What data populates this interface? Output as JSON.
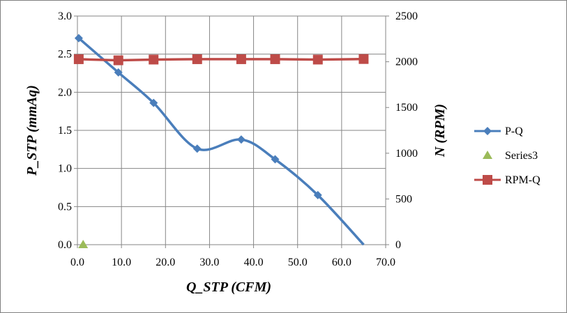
{
  "chart_data": {
    "type": "line",
    "xlabel": "Q_STP (CFM)",
    "ylabel": "P_STP (mmAq)",
    "y2label": "N (RPM)",
    "xlim": [
      0,
      70
    ],
    "ylim": [
      0,
      3
    ],
    "y2lim": [
      0,
      2500
    ],
    "x_ticks": [
      "0.0",
      "10.0",
      "20.0",
      "30.0",
      "40.0",
      "50.0",
      "60.0",
      "70.0"
    ],
    "y_ticks": [
      "0.0",
      "0.5",
      "1.0",
      "1.5",
      "2.0",
      "2.5",
      "3.0"
    ],
    "y2_ticks": [
      "0",
      "500",
      "1000",
      "1500",
      "2000",
      "2500"
    ],
    "grid": true,
    "legend_position": "right",
    "series": [
      {
        "name": "P-Q",
        "axis": "left",
        "marker": "diamond",
        "color": "#4a7ebb",
        "smooth": true,
        "x": [
          0.3,
          9.3,
          17.3,
          27.2,
          37.2,
          44.9,
          54.6,
          65.0
        ],
        "y": [
          2.71,
          2.26,
          1.86,
          1.26,
          1.38,
          1.12,
          0.65,
          0.0
        ],
        "show_last_marker": false
      },
      {
        "name": "Series3",
        "axis": "left",
        "marker": "triangle",
        "color": "#9bbb59",
        "x": [
          1.3
        ],
        "y": [
          0.0
        ]
      },
      {
        "name": "RPM-Q",
        "axis": "right",
        "marker": "square",
        "color": "#be4b48",
        "x": [
          0.3,
          9.3,
          17.3,
          27.2,
          37.2,
          44.9,
          54.6,
          65.0
        ],
        "y": [
          2028,
          2016,
          2024,
          2028,
          2028,
          2028,
          2024,
          2030
        ]
      }
    ]
  }
}
